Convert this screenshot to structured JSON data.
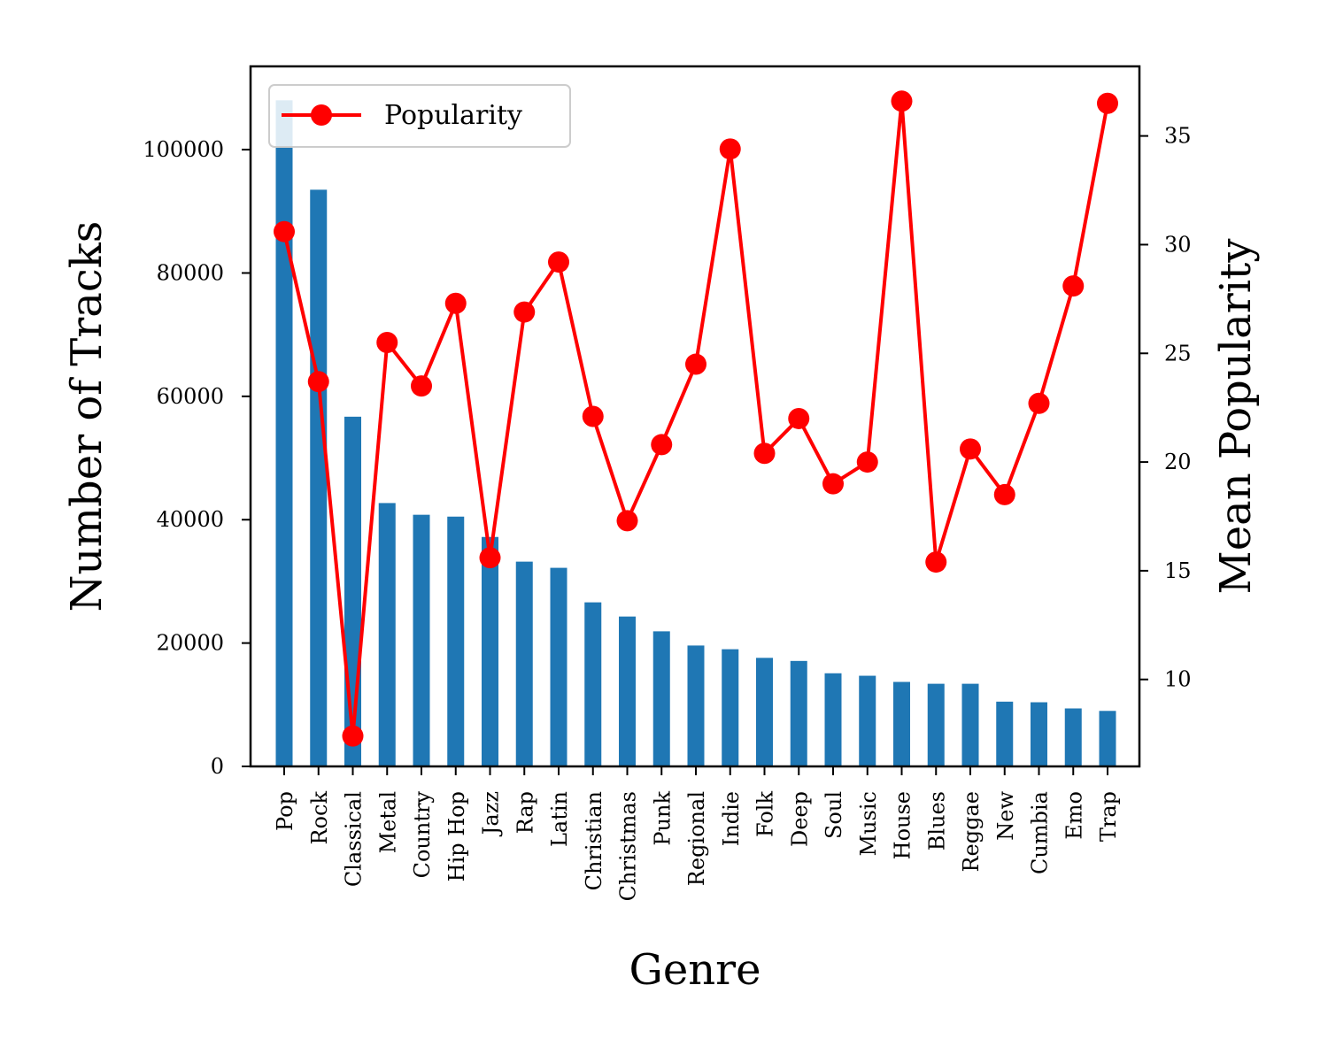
{
  "chart_data": {
    "type": "bar",
    "title": "",
    "xlabel": "Genre",
    "ylabel": "Number of Tracks",
    "y2label": "Mean Popularity",
    "categories": [
      "Pop",
      "Rock",
      "Classical",
      "Metal",
      "Country",
      "Hip Hop",
      "Jazz",
      "Rap",
      "Latin",
      "Christian",
      "Christmas",
      "Punk",
      "Regional",
      "Indie",
      "Folk",
      "Deep",
      "Soul",
      "Music",
      "House",
      "Blues",
      "Reggae",
      "New",
      "Cumbia",
      "Emo",
      "Trap"
    ],
    "series": [
      {
        "type": "bar",
        "axis": "left",
        "color": "#1f77b4",
        "values": [
          108000,
          93500,
          56700,
          42700,
          40800,
          40500,
          37200,
          33200,
          32200,
          26600,
          24300,
          21900,
          19600,
          19000,
          17600,
          17100,
          15100,
          14700,
          13700,
          13400,
          13400,
          10500,
          10400,
          9400,
          9000
        ]
      },
      {
        "name": "Popularity",
        "type": "line",
        "axis": "right",
        "color": "#ff0000",
        "marker": "circle",
        "values": [
          30.6,
          23.7,
          7.4,
          25.5,
          23.5,
          27.3,
          15.6,
          26.9,
          29.2,
          22.1,
          17.3,
          20.8,
          24.5,
          34.4,
          20.4,
          22.0,
          19.0,
          20.0,
          36.6,
          15.4,
          20.6,
          18.5,
          22.7,
          28.1,
          36.5
        ]
      }
    ],
    "ylim": [
      0,
      113500
    ],
    "y2lim": [
      6.0,
      38.2
    ],
    "yticks": [
      0,
      20000,
      40000,
      60000,
      80000,
      100000
    ],
    "y2ticks": [
      10,
      15,
      20,
      25,
      30,
      35
    ],
    "legend": {
      "placement": "top-left",
      "entries": [
        "Popularity"
      ]
    },
    "grid": false
  }
}
